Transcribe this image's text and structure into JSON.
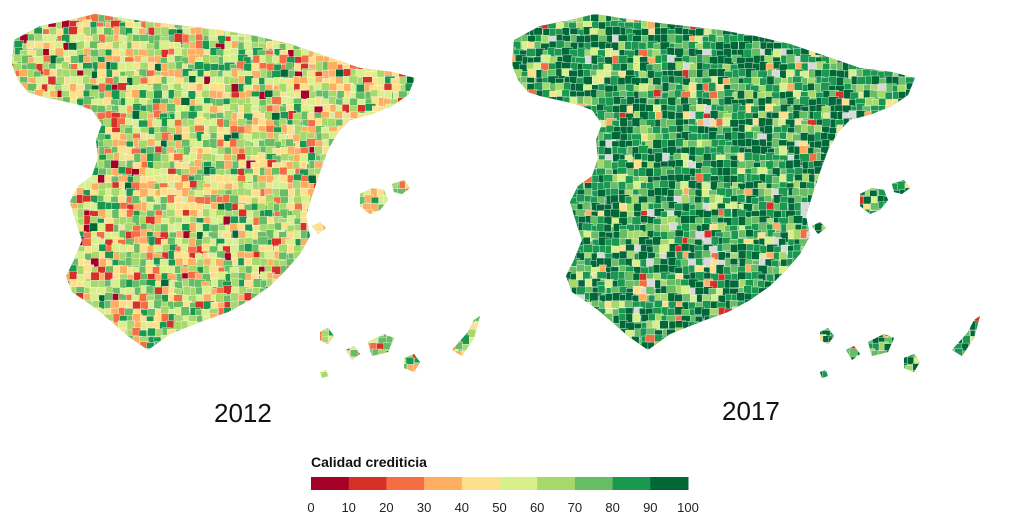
{
  "maps": [
    {
      "year": "2012",
      "palette_weights": [
        2,
        6,
        8,
        12,
        14,
        16,
        17,
        15,
        8,
        2
      ]
    },
    {
      "year": "2017",
      "palette_weights": [
        0,
        1,
        1,
        2,
        3,
        5,
        8,
        14,
        28,
        38
      ]
    }
  ],
  "legend": {
    "title": "Calidad crediticia",
    "ticks": [
      "0",
      "10",
      "20",
      "30",
      "40",
      "50",
      "60",
      "70",
      "80",
      "90",
      "100"
    ],
    "colors": [
      "#a50026",
      "#d73027",
      "#f46d43",
      "#fdae61",
      "#fee08b",
      "#d9ef8b",
      "#a6d96a",
      "#66bd63",
      "#1a9850",
      "#006837"
    ]
  },
  "no_data_color": "#d9d9d9"
}
